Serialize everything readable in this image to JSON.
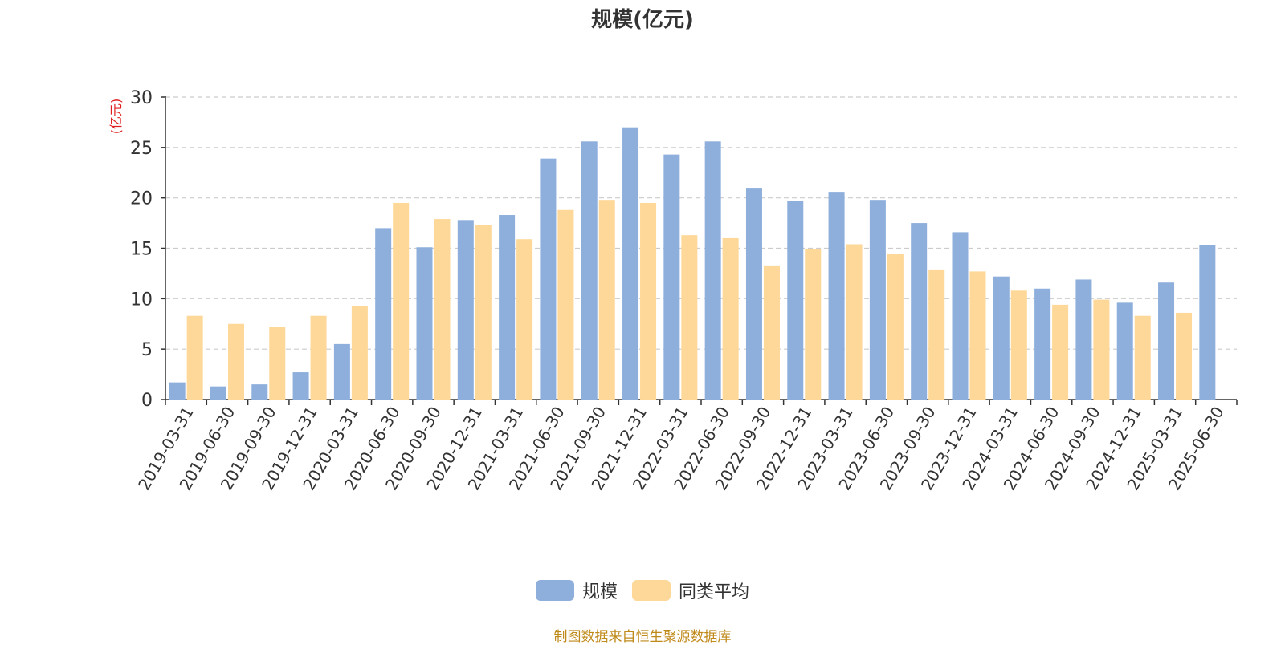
{
  "chart_data": {
    "type": "bar",
    "title": "规模(亿元)",
    "ylabel": "(亿元)",
    "xlabel": "",
    "ylim": [
      0,
      30
    ],
    "yticks": [
      0,
      5,
      10,
      15,
      20,
      25,
      30
    ],
    "grid": true,
    "legend_position": "bottom",
    "categories": [
      "2019-03-31",
      "2019-06-30",
      "2019-09-30",
      "2019-12-31",
      "2020-03-31",
      "2020-06-30",
      "2020-09-30",
      "2020-12-31",
      "2021-03-31",
      "2021-06-30",
      "2021-09-30",
      "2021-12-31",
      "2022-03-31",
      "2022-06-30",
      "2022-09-30",
      "2022-12-31",
      "2023-03-31",
      "2023-06-30",
      "2023-09-30",
      "2023-12-31",
      "2024-03-31",
      "2024-06-30",
      "2024-09-30",
      "2024-12-31",
      "2025-03-31",
      "2025-06-30"
    ],
    "series": [
      {
        "name": "规模",
        "color": "#8eaedc",
        "values": [
          1.7,
          1.3,
          1.5,
          2.7,
          5.5,
          17.0,
          15.1,
          17.8,
          18.3,
          23.9,
          25.6,
          27.0,
          24.3,
          25.6,
          21.0,
          19.7,
          20.6,
          19.8,
          17.5,
          16.6,
          12.2,
          11.0,
          11.9,
          9.6,
          11.6,
          15.3
        ]
      },
      {
        "name": "同类平均",
        "color": "#fdd898",
        "values": [
          8.3,
          7.5,
          7.2,
          8.3,
          9.3,
          19.5,
          17.9,
          17.3,
          15.9,
          18.8,
          19.8,
          19.5,
          16.3,
          16.0,
          13.3,
          14.9,
          15.4,
          14.4,
          12.9,
          12.7,
          10.8,
          9.4,
          9.9,
          8.3,
          8.6,
          null
        ]
      }
    ]
  },
  "footer": {
    "source": "制图数据来自恒生聚源数据库"
  },
  "colors": {
    "axis_label_red": "#e02020",
    "text": "#333333",
    "grid": "#cccccc",
    "source": "#c08a1b"
  }
}
